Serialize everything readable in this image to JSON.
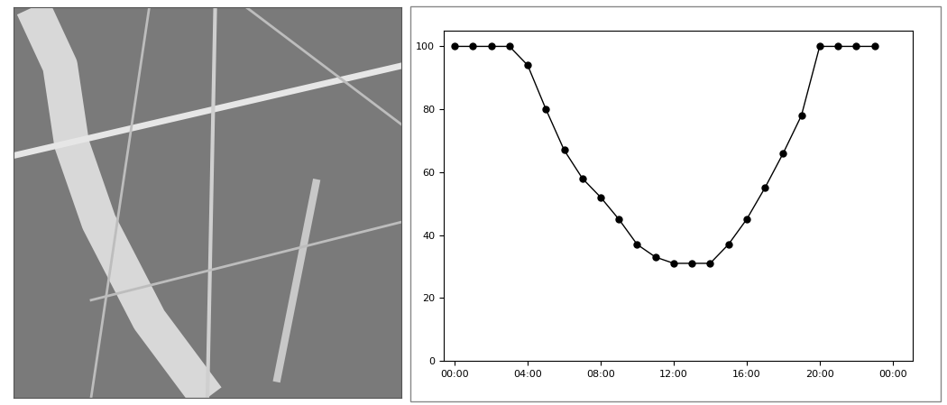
{
  "chart_data": {
    "type": "line",
    "x": [
      0,
      1,
      2,
      3,
      4,
      5,
      6,
      7,
      8,
      9,
      10,
      11,
      12,
      13,
      14,
      15,
      16,
      17,
      18,
      19,
      20,
      21,
      22,
      23
    ],
    "values": [
      100,
      100,
      100,
      100,
      94,
      80,
      67,
      58,
      52,
      45,
      37,
      33,
      31,
      31,
      31,
      37,
      45,
      55,
      66,
      78,
      100,
      100,
      100,
      100
    ],
    "color": "#000000",
    "marker": "o",
    "line_style": "solid",
    "xlim": [
      -0.6,
      25.1
    ],
    "ylim": [
      0,
      105
    ],
    "xticks": [
      {
        "value": 0,
        "label": "00:00"
      },
      {
        "value": 4,
        "label": "04:00"
      },
      {
        "value": 8,
        "label": "08:00"
      },
      {
        "value": 12,
        "label": "12:00"
      },
      {
        "value": 16,
        "label": "16:00"
      },
      {
        "value": 20,
        "label": "20:00"
      },
      {
        "value": 24,
        "label": "00:00"
      }
    ],
    "yticks": [
      0,
      20,
      40,
      60,
      80,
      100
    ],
    "grid": false
  }
}
